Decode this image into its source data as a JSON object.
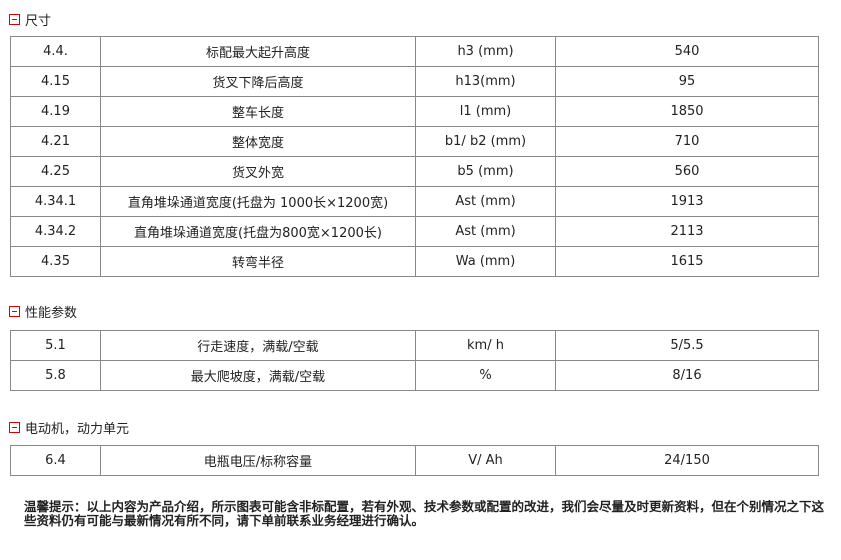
{
  "sections": [
    {
      "title": "尺寸",
      "rows": [
        [
          "4.4.",
          "标配最大起升高度",
          "h3 (mm)",
          "540"
        ],
        [
          "4.15",
          "货叉下降后高度",
          "h13(mm)",
          "95"
        ],
        [
          "4.19",
          "整车长度",
          "l1 (mm)",
          "1850"
        ],
        [
          "4.21",
          "整体宽度",
          "b1/ b2 (mm)",
          "710"
        ],
        [
          "4.25",
          "货叉外宽",
          "b5 (mm)",
          "560"
        ],
        [
          "4.34.1",
          "直角堆垛通道宽度(托盘为 1000长×1200宽)",
          "Ast (mm)",
          "1913"
        ],
        [
          "4.34.2",
          "直角堆垛通道宽度(托盘为800宽×1200长)",
          "Ast (mm)",
          "2113"
        ],
        [
          "4.35",
          "转弯半径",
          "Wa (mm)",
          "1615"
        ]
      ]
    },
    {
      "title": "性能参数",
      "rows": [
        [
          "5.1",
          "行走速度，满载/空载",
          "km/ h",
          "5/5.5"
        ],
        [
          "5.8",
          "最大爬坡度，满载/空载",
          "%",
          "8/16"
        ]
      ]
    },
    {
      "title": "电动机，动力单元",
      "rows": [
        [
          "6.4",
          "电瓶电压/标称容量",
          "V/ Ah",
          "24/150"
        ]
      ]
    }
  ],
  "note": "温馨提示：以上内容为产品介绍，所示图表可能含非标配置，若有外观、技术参数或配置的改进，我们会尽量及时更新资料，但在个别情况之下这些资料仍有可能与最新情况有所不同，请下单前联系业务经理进行确认。",
  "icons": {
    "collapse": "minus-box-icon"
  },
  "colors": {
    "accent": "#dd0000"
  }
}
